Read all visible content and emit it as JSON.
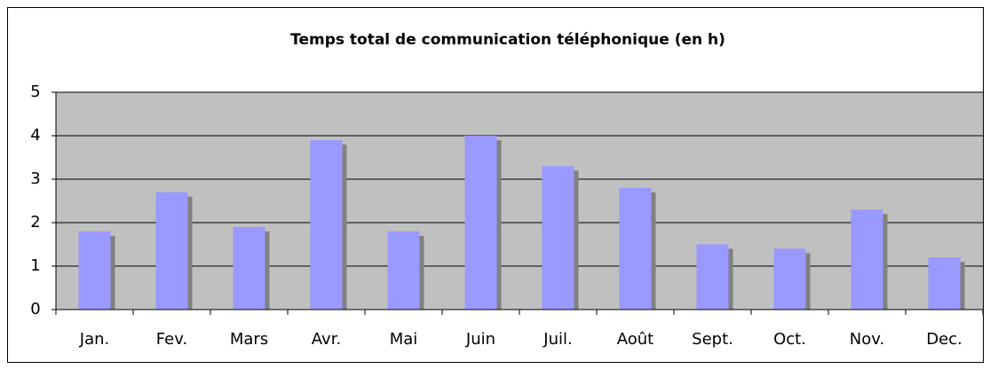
{
  "chart_data": {
    "type": "bar",
    "title": "Temps total de communication téléphonique (en h)",
    "categories": [
      "Jan.",
      "Fev.",
      "Mars",
      "Avr.",
      "Mai",
      "Juin",
      "Juil.",
      "Août",
      "Sept.",
      "Oct.",
      "Nov.",
      "Dec."
    ],
    "values": [
      1.8,
      2.7,
      1.9,
      3.9,
      1.8,
      4.0,
      3.3,
      2.8,
      1.5,
      1.4,
      2.3,
      1.2
    ],
    "color": "#9999ff",
    "ylim": [
      0,
      5
    ],
    "yticks": [
      0,
      1,
      2,
      3,
      4,
      5
    ],
    "grid": true
  }
}
